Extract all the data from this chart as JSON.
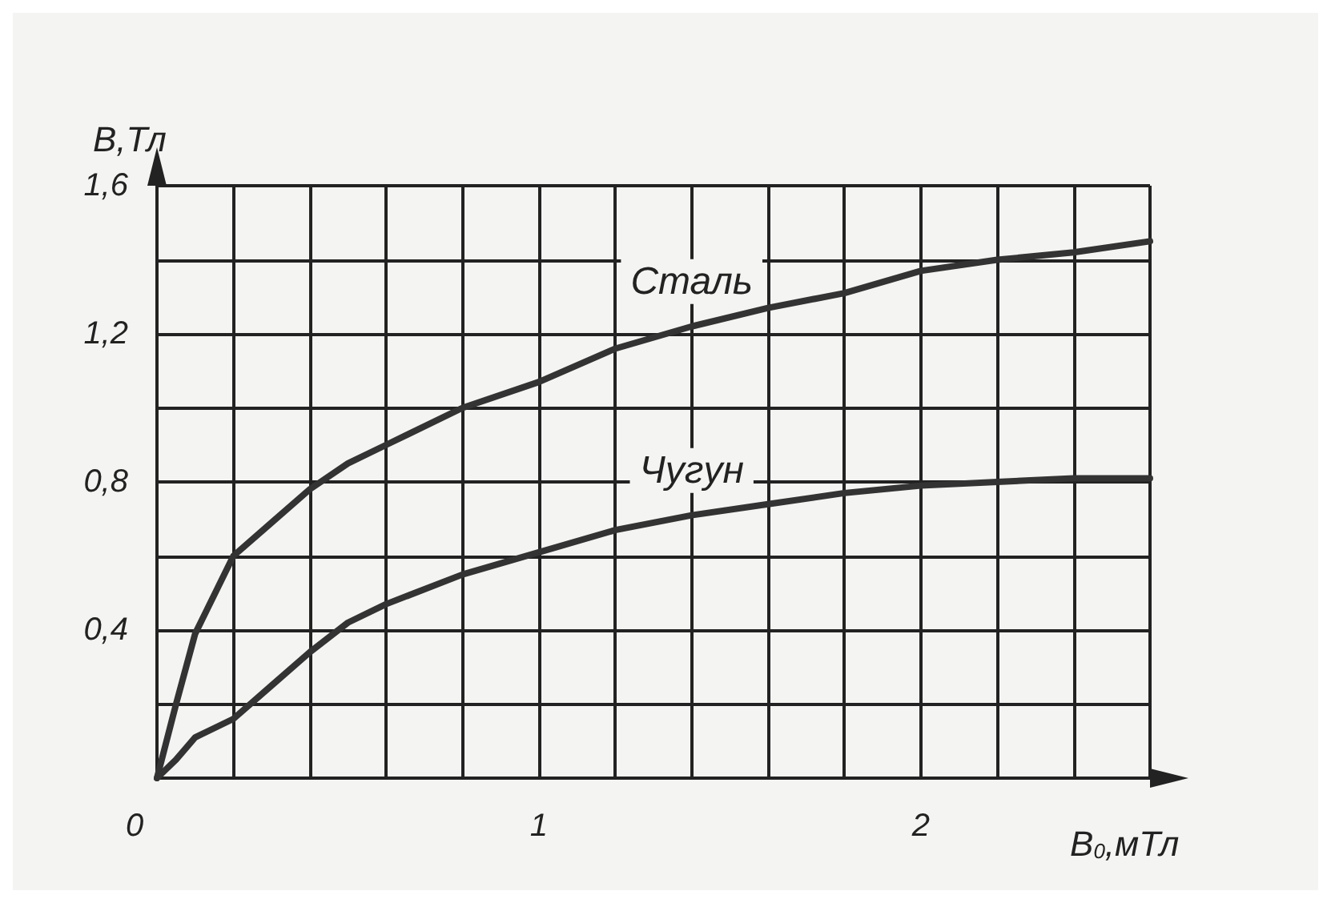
{
  "chart_data": {
    "type": "line",
    "xlabel": "B$_{0}$,мТл",
    "ylabel": "B,Тл",
    "xlim": [
      0,
      2.6
    ],
    "ylim": [
      0,
      1.6
    ],
    "xticks": [
      0,
      {
        "value": 0.2,
        "label": null
      },
      {
        "value": 0.4,
        "label": null
      },
      {
        "value": 0.6,
        "label": null
      },
      {
        "value": 0.8,
        "label": null
      },
      1,
      {
        "value": 1.2,
        "label": null
      },
      {
        "value": 1.4,
        "label": null
      },
      {
        "value": 1.6,
        "label": null
      },
      {
        "value": 1.8,
        "label": null
      },
      2,
      {
        "value": 2.2,
        "label": null
      },
      {
        "value": 2.4,
        "label": null
      },
      {
        "value": 2.6,
        "label": null
      }
    ],
    "yticks": [
      {
        "value": 0,
        "label": null
      },
      {
        "value": 0.2,
        "label": null
      },
      {
        "value": 0.4,
        "label": "0,4"
      },
      {
        "value": 0.6,
        "label": null
      },
      {
        "value": 0.8,
        "label": "0,8"
      },
      {
        "value": 1.0,
        "label": null
      },
      {
        "value": 1.2,
        "label": "1,2"
      },
      {
        "value": 1.4,
        "label": null
      },
      {
        "value": 1.6,
        "label": "1,6"
      }
    ],
    "x": [
      0,
      0.05,
      0.1,
      0.2,
      0.3,
      0.4,
      0.5,
      0.6,
      0.8,
      1.0,
      1.2,
      1.4,
      1.6,
      1.8,
      2.0,
      2.2,
      2.4,
      2.6
    ],
    "series": [
      {
        "name": "Сталь",
        "color": "#333333",
        "values": [
          0,
          0.2,
          0.39,
          0.6,
          0.69,
          0.78,
          0.85,
          0.9,
          1.0,
          1.07,
          1.16,
          1.22,
          1.27,
          1.31,
          1.37,
          1.4,
          1.42,
          1.45
        ]
      },
      {
        "name": "Чугун",
        "color": "#333333",
        "values": [
          0,
          0.05,
          0.11,
          0.16,
          0.25,
          0.34,
          0.42,
          0.47,
          0.55,
          0.61,
          0.67,
          0.71,
          0.74,
          0.77,
          0.79,
          0.8,
          0.81,
          0.81
        ]
      }
    ],
    "grid": true,
    "legend": false,
    "marker": "none",
    "line_style": "solid"
  }
}
